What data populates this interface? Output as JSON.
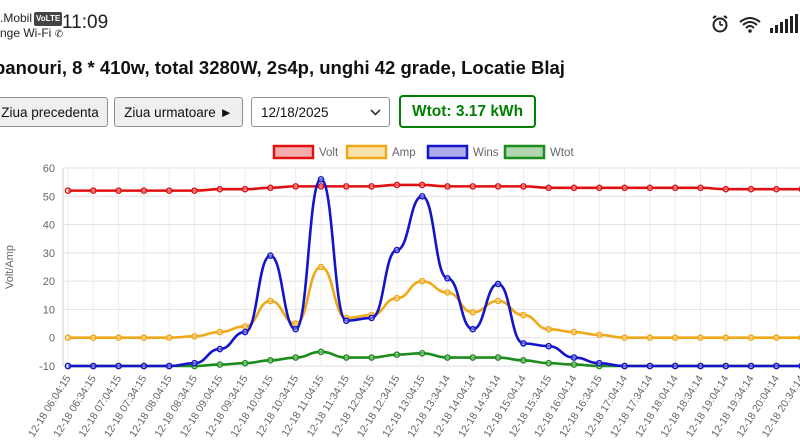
{
  "status_bar": {
    "carrier_line1": ".Mobil",
    "carrier_badge": "VoLTE",
    "carrier_line2": "nge Wi-Fi",
    "time": "11:09",
    "icons": [
      "alarm-icon",
      "wifi-icon",
      "signal-icon"
    ]
  },
  "page": {
    "title": "panouri, 8 * 410w, total 3280W, 2s4p, unghi 42 grade, Locatie Blaj"
  },
  "controls": {
    "prev_label": "Ziua precedenta",
    "next_label": "Ziua urmatoare ►",
    "date_value": "12/18/2025",
    "wtot_label": "Wtot: 3.17 kWh"
  },
  "colors": {
    "volt": "#e01010",
    "amp": "#f0a818",
    "wins": "#1414c8",
    "wtot": "#1c8c1c"
  },
  "chart_data": {
    "type": "line",
    "title": "",
    "xlabel": "",
    "ylabel": "Volt/Amp",
    "ylim": [
      -10,
      60
    ],
    "yticks": [
      -10,
      0,
      10,
      20,
      30,
      40,
      50,
      60
    ],
    "grid": true,
    "legend_position": "top",
    "x": [
      "12-18 06:04:15",
      "12-18 06:34:15",
      "12-18 07:04:15",
      "12-18 07:34:15",
      "12-18 08:04:15",
      "12-18 08:34:15",
      "12-18 09:04:15",
      "12-18 09:34:15",
      "12-18 10:04:15",
      "12-18 10:34:15",
      "12-18 11:04:15",
      "12-18 11:34:15",
      "12-18 12:04:15",
      "12-18 12:34:15",
      "12-18 13:04:15",
      "12-18 13:34:14",
      "12-18 14:04:14",
      "12-18 14:34:14",
      "12-18 15:04:14",
      "12-18 15:34:15",
      "12-18 16:04:14",
      "12-18 16:34:15",
      "12-18 17:04:14",
      "12-18 17:34:14",
      "12-18 18:04:14",
      "12-18 18:34:14",
      "12-18 19:04:14",
      "12-18 19:34:14",
      "12-18 20:04:14",
      "12-18 20:34:14"
    ],
    "series": [
      {
        "name": "Volt",
        "color": "#e01010",
        "values": [
          52,
          52,
          52,
          52,
          52,
          52,
          52.5,
          52.5,
          53,
          53.5,
          53.5,
          53.5,
          53.5,
          54,
          54,
          53.5,
          53.5,
          53.5,
          53.5,
          53,
          53,
          53,
          53,
          53,
          53,
          53,
          52.5,
          52.5,
          52.5,
          52.5
        ]
      },
      {
        "name": "Amp",
        "color": "#f0a818",
        "values": [
          0,
          0,
          0,
          0,
          0,
          0.5,
          2,
          4,
          13,
          5,
          25,
          7,
          8,
          14,
          20,
          16,
          9,
          13,
          8,
          3,
          2,
          1,
          0,
          0,
          0,
          0,
          0,
          0,
          0,
          0
        ]
      },
      {
        "name": "Wins",
        "color": "#1414c8",
        "values": [
          -10,
          -10,
          -10,
          -10,
          -10,
          -9,
          -4,
          2,
          29,
          3,
          56,
          6,
          7,
          31,
          50,
          21,
          3,
          19,
          -2,
          -3,
          -7,
          -9,
          -10,
          -10,
          -10,
          -10,
          -10,
          -10,
          -10,
          -10
        ]
      },
      {
        "name": "Wtot",
        "color": "#1c8c1c",
        "values": [
          -10,
          -10,
          -10,
          -10,
          -10,
          -10,
          -9.5,
          -9,
          -8,
          -7,
          -5,
          -7,
          -7,
          -6,
          -5.5,
          -7,
          -7,
          -7,
          -8,
          -9,
          -9.5,
          -10,
          -10,
          -10,
          -10,
          -10,
          -10,
          -10,
          -10,
          -10
        ]
      }
    ]
  }
}
